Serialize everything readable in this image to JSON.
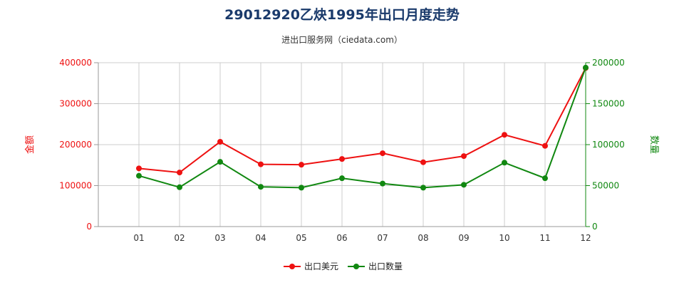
{
  "title": "29012920乙炔1995年出口月度走势",
  "subtitle": "进出口服务网（ciedata.com）",
  "chart_data": {
    "type": "line",
    "categories": [
      "01",
      "02",
      "03",
      "04",
      "05",
      "06",
      "07",
      "08",
      "09",
      "10",
      "11",
      "12"
    ],
    "series": [
      {
        "name": "出口美元",
        "axis": "left",
        "color": "#ee1111",
        "values": [
          142000,
          132000,
          207000,
          152000,
          151000,
          165000,
          179000,
          157000,
          172000,
          224000,
          197000,
          387000
        ]
      },
      {
        "name": "出口数量",
        "axis": "right",
        "color": "#118811",
        "values": [
          62000,
          48000,
          79000,
          48500,
          47500,
          59000,
          52500,
          47500,
          51000,
          78000,
          59000,
          194000
        ]
      }
    ],
    "y_left": {
      "label": "金额",
      "ticks": [
        0,
        100000,
        200000,
        300000,
        400000
      ],
      "range": [
        0,
        400000
      ],
      "color": "#ee1111"
    },
    "y_right": {
      "label": "数量",
      "ticks": [
        0,
        50000,
        100000,
        150000,
        200000
      ],
      "range": [
        0,
        200000
      ],
      "color": "#118811"
    },
    "grid": true,
    "legend_position": "bottom"
  }
}
